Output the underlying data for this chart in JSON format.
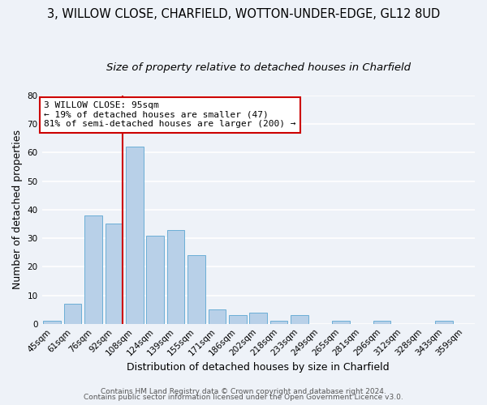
{
  "title": "3, WILLOW CLOSE, CHARFIELD, WOTTON-UNDER-EDGE, GL12 8UD",
  "subtitle": "Size of property relative to detached houses in Charfield",
  "xlabel": "Distribution of detached houses by size in Charfield",
  "ylabel": "Number of detached properties",
  "categories": [
    "45sqm",
    "61sqm",
    "76sqm",
    "92sqm",
    "108sqm",
    "124sqm",
    "139sqm",
    "155sqm",
    "171sqm",
    "186sqm",
    "202sqm",
    "218sqm",
    "233sqm",
    "249sqm",
    "265sqm",
    "281sqm",
    "296sqm",
    "312sqm",
    "328sqm",
    "343sqm",
    "359sqm"
  ],
  "values": [
    1,
    7,
    38,
    35,
    62,
    31,
    33,
    24,
    5,
    3,
    4,
    1,
    3,
    0,
    1,
    0,
    1,
    0,
    0,
    1,
    0
  ],
  "bar_color": "#b8d0e8",
  "bar_edge_color": "#6baed6",
  "bar_edge_width": 0.7,
  "vline_color": "#cc0000",
  "vline_x_index": 3.425,
  "annotation_text_line1": "3 WILLOW CLOSE: 95sqm",
  "annotation_text_line2": "← 19% of detached houses are smaller (47)",
  "annotation_text_line3": "81% of semi-detached houses are larger (200) →",
  "ylim": [
    0,
    80
  ],
  "yticks": [
    0,
    10,
    20,
    30,
    40,
    50,
    60,
    70,
    80
  ],
  "bg_color": "#eef2f8",
  "axes_bg_color": "#eef2f8",
  "grid_color": "#ffffff",
  "footer_line1": "Contains HM Land Registry data © Crown copyright and database right 2024.",
  "footer_line2": "Contains public sector information licensed under the Open Government Licence v3.0.",
  "title_fontsize": 10.5,
  "subtitle_fontsize": 9.5,
  "axis_label_fontsize": 9,
  "tick_fontsize": 7.5,
  "annotation_fontsize": 8,
  "footer_fontsize": 6.5
}
